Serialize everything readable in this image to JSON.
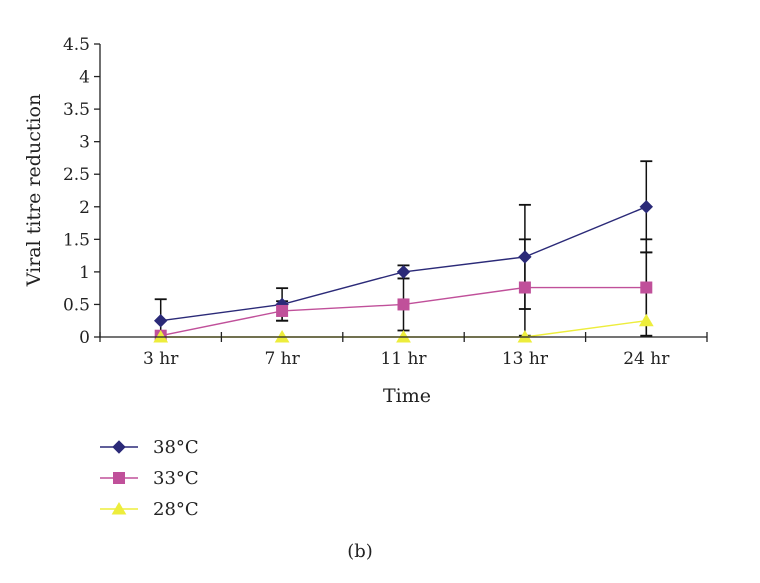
{
  "chart_data": {
    "type": "line",
    "title": "",
    "panel_label": "(b)",
    "xlabel": "Time",
    "ylabel": "Viral titre reduction",
    "categories": [
      "3 hr",
      "7 hr",
      "11 hr",
      "13 hr",
      "24 hr"
    ],
    "ylim": [
      0,
      4.5
    ],
    "yticks": [
      "0",
      "0.5",
      "1",
      "1.5",
      "2",
      "2.5",
      "3",
      "3.5",
      "4",
      "4.5"
    ],
    "grid": false,
    "legend_position": "bottom-left",
    "series": [
      {
        "name": "38°C",
        "color": "#2b2a78",
        "marker": "diamond",
        "values": [
          0.25,
          0.5,
          1.0,
          1.23,
          2.0
        ],
        "errors": [
          0.33,
          0.25,
          0.1,
          0.8,
          0.7
        ]
      },
      {
        "name": "33°C",
        "color": "#c0509a",
        "marker": "square",
        "values": [
          0.02,
          0.4,
          0.5,
          0.76,
          0.76
        ],
        "errors": [
          0,
          0.15,
          0.4,
          0.74,
          0.74
        ]
      },
      {
        "name": "28°C",
        "color": "#eded3c",
        "marker": "triangle",
        "values": [
          0,
          0,
          0,
          0,
          0.25
        ],
        "errors": [
          0,
          0,
          0,
          0,
          1.05
        ]
      }
    ]
  }
}
